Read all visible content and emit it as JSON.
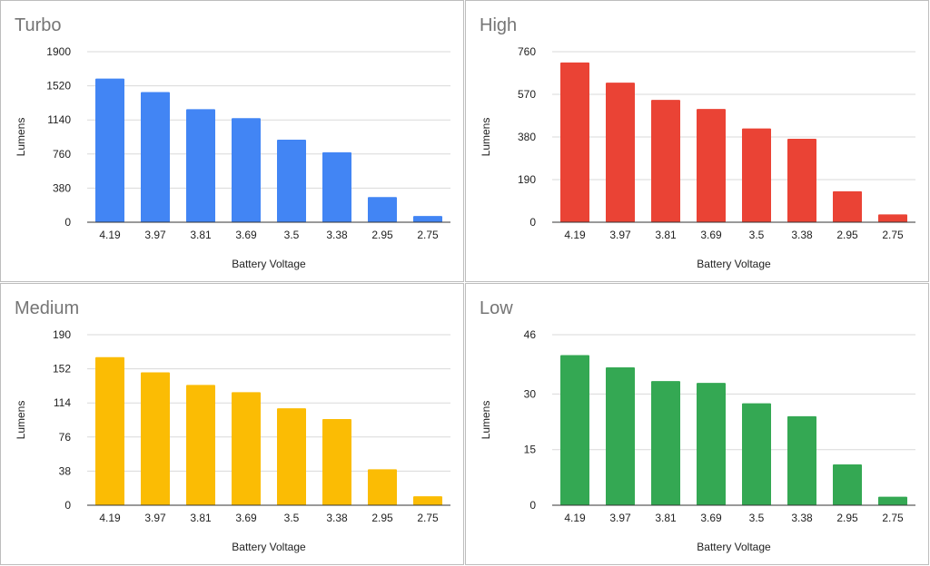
{
  "chart_data": [
    {
      "type": "bar",
      "title": "Turbo",
      "xlabel": "Battery Voltage",
      "ylabel": "Lumens",
      "categories": [
        "4.19",
        "3.97",
        "3.81",
        "3.69",
        "3.5",
        "3.38",
        "2.95",
        "2.75"
      ],
      "values": [
        1600,
        1450,
        1260,
        1160,
        920,
        780,
        280,
        70
      ],
      "yticks": [
        "0",
        "380",
        "760",
        "1140",
        "1520",
        "1900"
      ],
      "ylim": [
        0,
        1900
      ],
      "color": "#4285f4"
    },
    {
      "type": "bar",
      "title": "High",
      "xlabel": "Battery Voltage",
      "ylabel": "Lumens",
      "categories": [
        "4.19",
        "3.97",
        "3.81",
        "3.69",
        "3.5",
        "3.38",
        "2.95",
        "2.75"
      ],
      "values": [
        712,
        622,
        545,
        505,
        418,
        372,
        138,
        35
      ],
      "yticks": [
        "0",
        "190",
        "380",
        "570",
        "760"
      ],
      "ylim": [
        0,
        760
      ],
      "color": "#ea4335"
    },
    {
      "type": "bar",
      "title": "Medium",
      "xlabel": "Battery Voltage",
      "ylabel": "Lumens",
      "categories": [
        "4.19",
        "3.97",
        "3.81",
        "3.69",
        "3.5",
        "3.38",
        "2.95",
        "2.75"
      ],
      "values": [
        165,
        148,
        134,
        126,
        108,
        96,
        40,
        10
      ],
      "yticks": [
        "0",
        "38",
        "76",
        "114",
        "152",
        "190"
      ],
      "ylim": [
        0,
        190
      ],
      "color": "#fbbc04"
    },
    {
      "type": "bar",
      "title": "Low",
      "xlabel": "Battery Voltage",
      "ylabel": "Lumens",
      "categories": [
        "4.19",
        "3.97",
        "3.81",
        "3.69",
        "3.5",
        "3.38",
        "2.95",
        "2.75"
      ],
      "values": [
        40.5,
        37.2,
        33.5,
        33,
        27.5,
        24,
        11,
        2.3
      ],
      "yticks": [
        "0",
        "15",
        "30",
        "46"
      ],
      "ytick_values": [
        0,
        15,
        30,
        46
      ],
      "ylim": [
        0,
        46
      ],
      "color": "#34a853"
    }
  ]
}
